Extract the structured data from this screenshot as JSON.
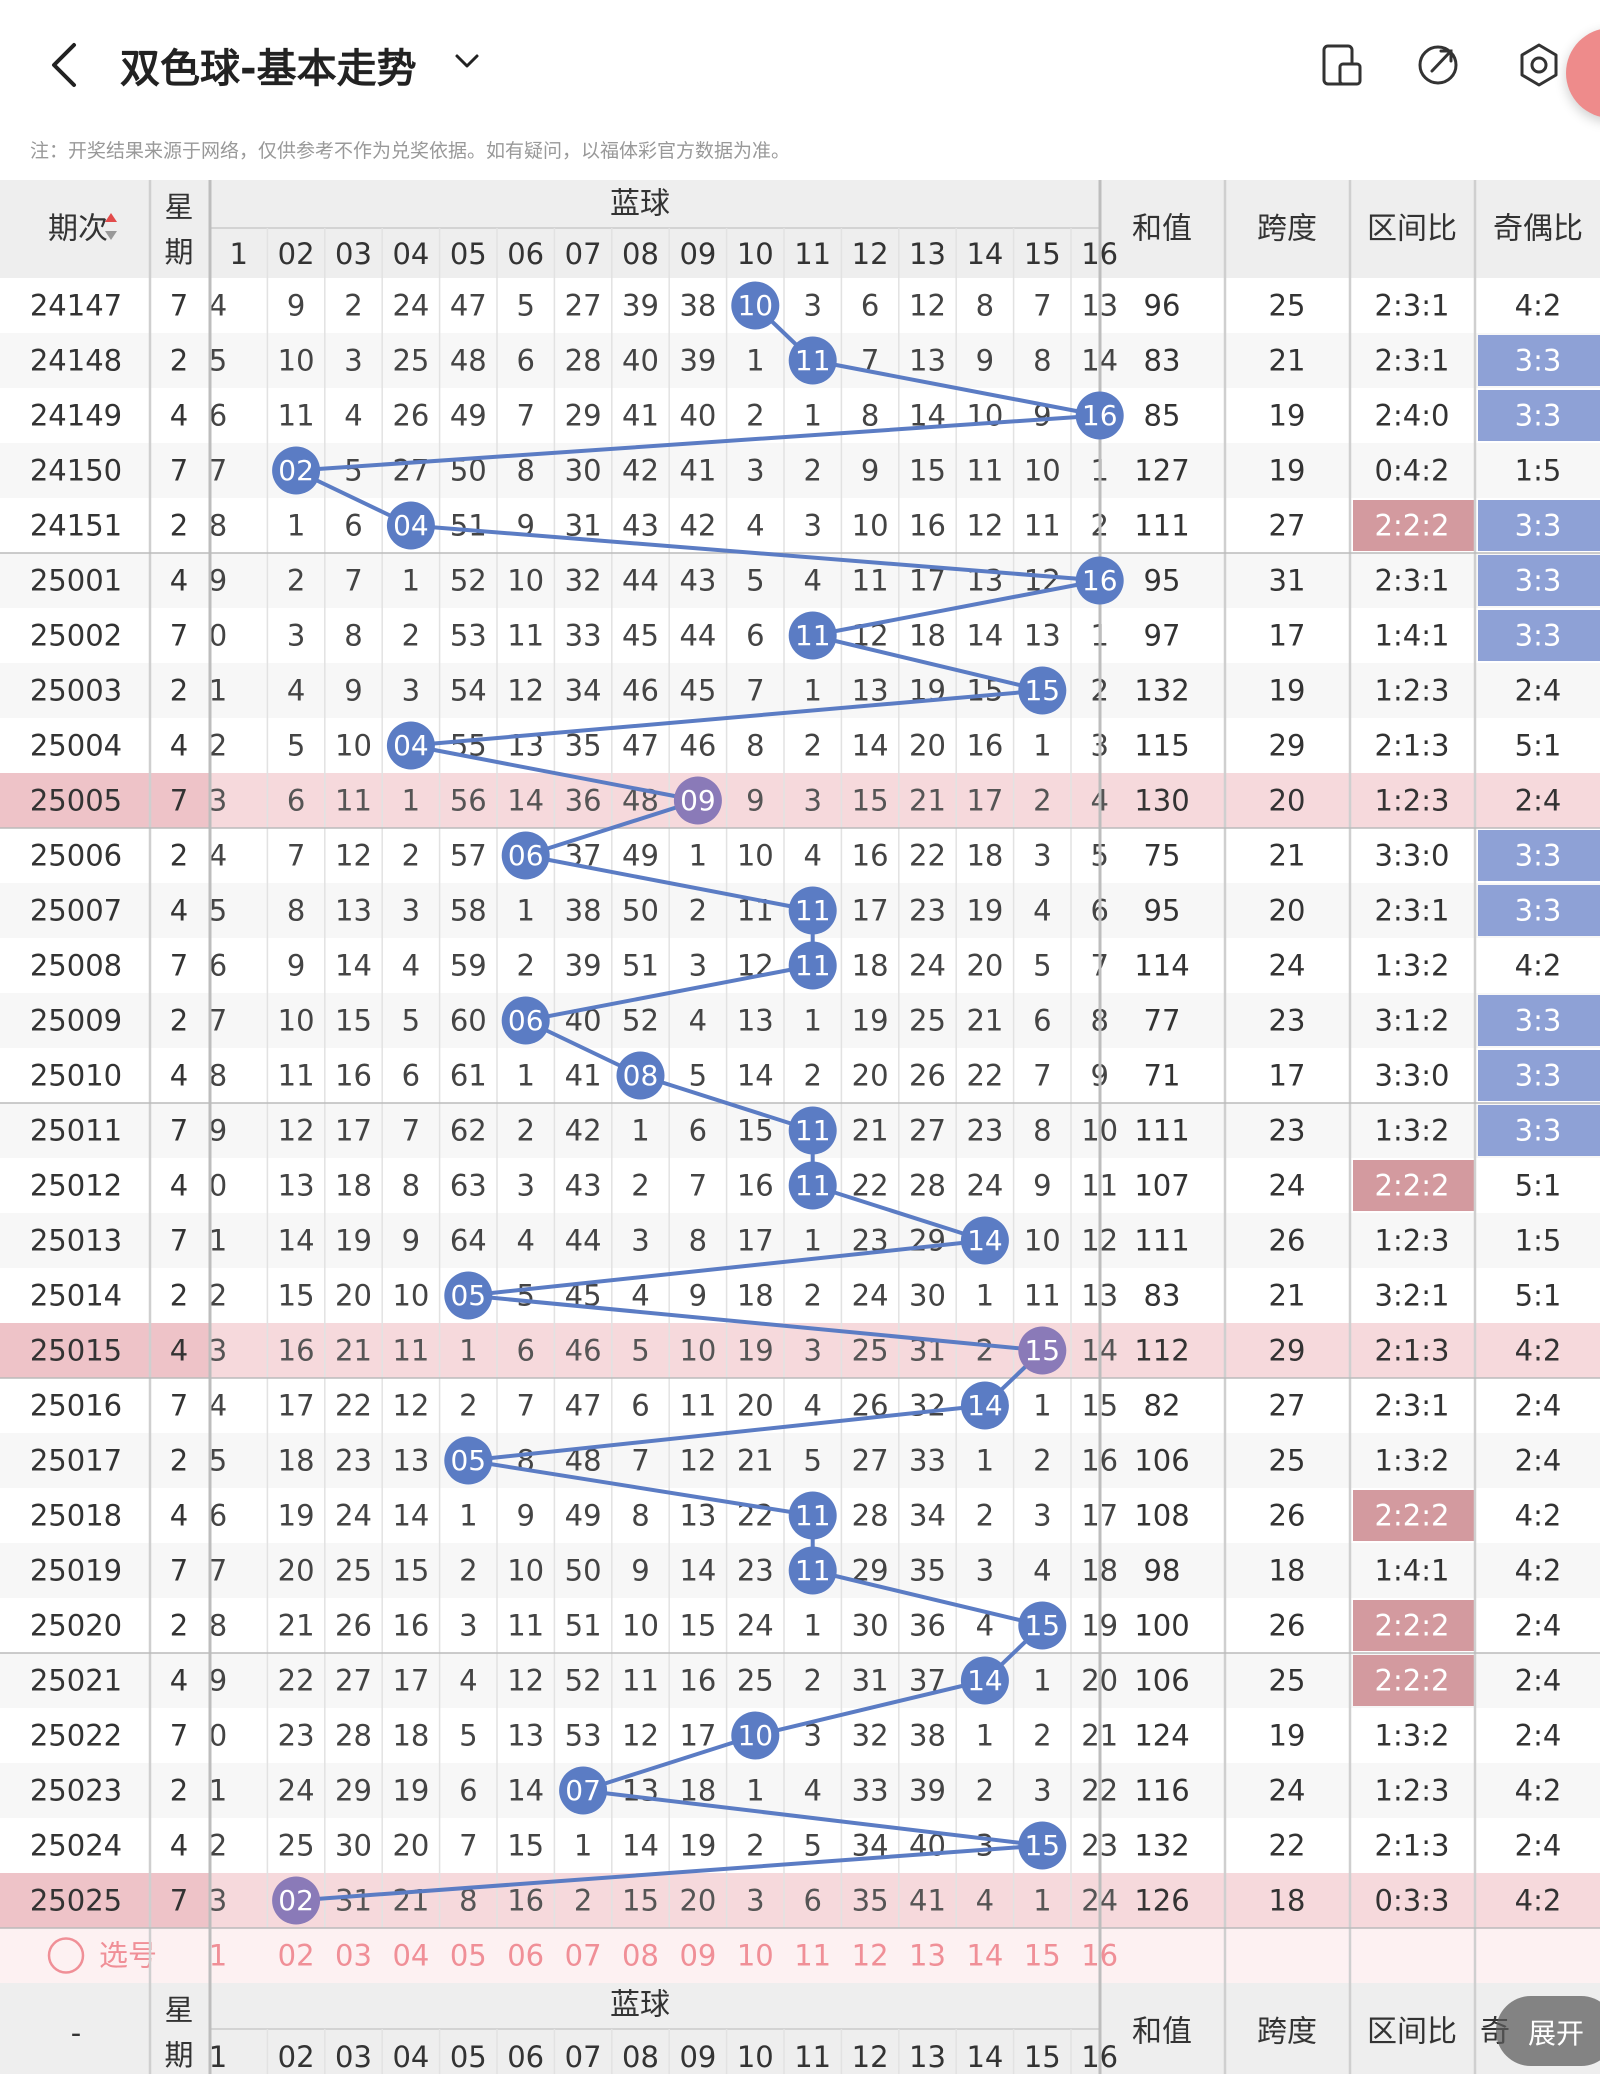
{
  "header": {
    "title": "双色球-基本走势",
    "icons": [
      "back-arrow-icon",
      "dropdown-chevron-icon",
      "device-icon",
      "share-icon",
      "settings-icon"
    ]
  },
  "notice": "注：开奖结果来源于网络，仅供参考不作为兑奖依据。如有疑问，以福体彩官方数据为准。",
  "table": {
    "col_issue": "期次",
    "col_week": "星期",
    "col_blue": "蓝球",
    "col_sum": "和值",
    "col_span": "跨度",
    "col_zone": "区间比",
    "col_odd": "奇偶比",
    "blue_numbers": [
      "1",
      "02",
      "03",
      "04",
      "05",
      "06",
      "07",
      "08",
      "09",
      "10",
      "11",
      "12",
      "13",
      "14",
      "15",
      "16"
    ],
    "rows": [
      {
        "issue": "24147",
        "week": "7",
        "blue": 10,
        "cells": [
          "4",
          "9",
          "2",
          "24",
          "47",
          "5",
          "27",
          "39",
          "38",
          "10",
          "3",
          "6",
          "12",
          "8",
          "7",
          "13"
        ],
        "sum": "96",
        "span": "25",
        "zone": "2:3:1",
        "odd": "4:2",
        "zone_hl": false,
        "odd_hl": false,
        "row_hl": false
      },
      {
        "issue": "24148",
        "week": "2",
        "blue": 11,
        "cells": [
          "5",
          "10",
          "3",
          "25",
          "48",
          "6",
          "28",
          "40",
          "39",
          "1",
          "11",
          "7",
          "13",
          "9",
          "8",
          "14"
        ],
        "sum": "83",
        "span": "21",
        "zone": "2:3:1",
        "odd": "3:3",
        "zone_hl": false,
        "odd_hl": true,
        "row_hl": false
      },
      {
        "issue": "24149",
        "week": "4",
        "blue": 16,
        "cells": [
          "6",
          "11",
          "4",
          "26",
          "49",
          "7",
          "29",
          "41",
          "40",
          "2",
          "1",
          "8",
          "14",
          "10",
          "9",
          "16"
        ],
        "sum": "85",
        "span": "19",
        "zone": "2:4:0",
        "odd": "3:3",
        "zone_hl": false,
        "odd_hl": true,
        "row_hl": false
      },
      {
        "issue": "24150",
        "week": "7",
        "blue": 2,
        "cells": [
          "7",
          "02",
          "5",
          "27",
          "50",
          "8",
          "30",
          "42",
          "41",
          "3",
          "2",
          "9",
          "15",
          "11",
          "10",
          "1"
        ],
        "sum": "127",
        "span": "19",
        "zone": "0:4:2",
        "odd": "1:5",
        "zone_hl": false,
        "odd_hl": false,
        "row_hl": false
      },
      {
        "issue": "24151",
        "week": "2",
        "blue": 4,
        "cells": [
          "8",
          "1",
          "6",
          "04",
          "51",
          "9",
          "31",
          "43",
          "42",
          "4",
          "3",
          "10",
          "16",
          "12",
          "11",
          "2"
        ],
        "sum": "111",
        "span": "27",
        "zone": "2:2:2",
        "odd": "3:3",
        "zone_hl": true,
        "odd_hl": true,
        "row_hl": false
      },
      {
        "issue": "25001",
        "week": "4",
        "blue": 16,
        "cells": [
          "9",
          "2",
          "7",
          "1",
          "52",
          "10",
          "32",
          "44",
          "43",
          "5",
          "4",
          "11",
          "17",
          "13",
          "12",
          "16"
        ],
        "sum": "95",
        "span": "31",
        "zone": "2:3:1",
        "odd": "3:3",
        "zone_hl": false,
        "odd_hl": true,
        "row_hl": false
      },
      {
        "issue": "25002",
        "week": "7",
        "blue": 11,
        "cells": [
          "0",
          "3",
          "8",
          "2",
          "53",
          "11",
          "33",
          "45",
          "44",
          "6",
          "11",
          "12",
          "18",
          "14",
          "13",
          "1"
        ],
        "sum": "97",
        "span": "17",
        "zone": "1:4:1",
        "odd": "3:3",
        "zone_hl": false,
        "odd_hl": true,
        "row_hl": false
      },
      {
        "issue": "25003",
        "week": "2",
        "blue": 15,
        "cells": [
          "1",
          "4",
          "9",
          "3",
          "54",
          "12",
          "34",
          "46",
          "45",
          "7",
          "1",
          "13",
          "19",
          "15",
          "15",
          "2"
        ],
        "sum": "132",
        "span": "19",
        "zone": "1:2:3",
        "odd": "2:4",
        "zone_hl": false,
        "odd_hl": false,
        "row_hl": false
      },
      {
        "issue": "25004",
        "week": "4",
        "blue": 4,
        "cells": [
          "2",
          "5",
          "10",
          "04",
          "55",
          "13",
          "35",
          "47",
          "46",
          "8",
          "2",
          "14",
          "20",
          "16",
          "1",
          "3"
        ],
        "sum": "115",
        "span": "29",
        "zone": "2:1:3",
        "odd": "5:1",
        "zone_hl": false,
        "odd_hl": false,
        "row_hl": false
      },
      {
        "issue": "25005",
        "week": "7",
        "blue": 9,
        "cells": [
          "3",
          "6",
          "11",
          "1",
          "56",
          "14",
          "36",
          "48",
          "09",
          "9",
          "3",
          "15",
          "21",
          "17",
          "2",
          "4"
        ],
        "sum": "130",
        "span": "20",
        "zone": "1:2:3",
        "odd": "2:4",
        "zone_hl": false,
        "odd_hl": false,
        "row_hl": true
      },
      {
        "issue": "25006",
        "week": "2",
        "blue": 6,
        "cells": [
          "4",
          "7",
          "12",
          "2",
          "57",
          "06",
          "37",
          "49",
          "1",
          "10",
          "4",
          "16",
          "22",
          "18",
          "3",
          "5"
        ],
        "sum": "75",
        "span": "21",
        "zone": "3:3:0",
        "odd": "3:3",
        "zone_hl": false,
        "odd_hl": true,
        "row_hl": false
      },
      {
        "issue": "25007",
        "week": "4",
        "blue": 11,
        "cells": [
          "5",
          "8",
          "13",
          "3",
          "58",
          "1",
          "38",
          "50",
          "2",
          "11",
          "11",
          "17",
          "23",
          "19",
          "4",
          "6"
        ],
        "sum": "95",
        "span": "20",
        "zone": "2:3:1",
        "odd": "3:3",
        "zone_hl": false,
        "odd_hl": true,
        "row_hl": false
      },
      {
        "issue": "25008",
        "week": "7",
        "blue": 11,
        "cells": [
          "6",
          "9",
          "14",
          "4",
          "59",
          "2",
          "39",
          "51",
          "3",
          "12",
          "11",
          "18",
          "24",
          "20",
          "5",
          "7"
        ],
        "sum": "114",
        "span": "24",
        "zone": "1:3:2",
        "odd": "4:2",
        "zone_hl": false,
        "odd_hl": false,
        "row_hl": false
      },
      {
        "issue": "25009",
        "week": "2",
        "blue": 6,
        "cells": [
          "7",
          "10",
          "15",
          "5",
          "60",
          "06",
          "40",
          "52",
          "4",
          "13",
          "1",
          "19",
          "25",
          "21",
          "6",
          "8"
        ],
        "sum": "77",
        "span": "23",
        "zone": "3:1:2",
        "odd": "3:3",
        "zone_hl": false,
        "odd_hl": true,
        "row_hl": false
      },
      {
        "issue": "25010",
        "week": "4",
        "blue": 8,
        "cells": [
          "8",
          "11",
          "16",
          "6",
          "61",
          "1",
          "41",
          "08",
          "5",
          "14",
          "2",
          "20",
          "26",
          "22",
          "7",
          "9"
        ],
        "sum": "71",
        "span": "17",
        "zone": "3:3:0",
        "odd": "3:3",
        "zone_hl": false,
        "odd_hl": true,
        "row_hl": false
      },
      {
        "issue": "25011",
        "week": "7",
        "blue": 11,
        "cells": [
          "9",
          "12",
          "17",
          "7",
          "62",
          "2",
          "42",
          "1",
          "6",
          "15",
          "11",
          "21",
          "27",
          "23",
          "8",
          "10"
        ],
        "sum": "111",
        "span": "23",
        "zone": "1:3:2",
        "odd": "3:3",
        "zone_hl": false,
        "odd_hl": true,
        "row_hl": false
      },
      {
        "issue": "25012",
        "week": "4",
        "blue": 11,
        "cells": [
          "0",
          "13",
          "18",
          "8",
          "63",
          "3",
          "43",
          "2",
          "7",
          "16",
          "11",
          "22",
          "28",
          "24",
          "9",
          "11"
        ],
        "sum": "107",
        "span": "24",
        "zone": "2:2:2",
        "odd": "5:1",
        "zone_hl": true,
        "odd_hl": false,
        "row_hl": false
      },
      {
        "issue": "25013",
        "week": "7",
        "blue": 14,
        "cells": [
          "1",
          "14",
          "19",
          "9",
          "64",
          "4",
          "44",
          "3",
          "8",
          "17",
          "1",
          "23",
          "29",
          "14",
          "10",
          "12"
        ],
        "sum": "111",
        "span": "26",
        "zone": "1:2:3",
        "odd": "1:5",
        "zone_hl": false,
        "odd_hl": false,
        "row_hl": false
      },
      {
        "issue": "25014",
        "week": "2",
        "blue": 5,
        "cells": [
          "2",
          "15",
          "20",
          "10",
          "05",
          "5",
          "45",
          "4",
          "9",
          "18",
          "2",
          "24",
          "30",
          "1",
          "11",
          "13"
        ],
        "sum": "83",
        "span": "21",
        "zone": "3:2:1",
        "odd": "5:1",
        "zone_hl": false,
        "odd_hl": false,
        "row_hl": false
      },
      {
        "issue": "25015",
        "week": "4",
        "blue": 15,
        "cells": [
          "3",
          "16",
          "21",
          "11",
          "1",
          "6",
          "46",
          "5",
          "10",
          "19",
          "3",
          "25",
          "31",
          "2",
          "15",
          "14"
        ],
        "sum": "112",
        "span": "29",
        "zone": "2:1:3",
        "odd": "4:2",
        "zone_hl": false,
        "odd_hl": false,
        "row_hl": true
      },
      {
        "issue": "25016",
        "week": "7",
        "blue": 14,
        "cells": [
          "4",
          "17",
          "22",
          "12",
          "2",
          "7",
          "47",
          "6",
          "11",
          "20",
          "4",
          "26",
          "32",
          "14",
          "1",
          "15"
        ],
        "sum": "82",
        "span": "27",
        "zone": "2:3:1",
        "odd": "2:4",
        "zone_hl": false,
        "odd_hl": false,
        "row_hl": false
      },
      {
        "issue": "25017",
        "week": "2",
        "blue": 5,
        "cells": [
          "5",
          "18",
          "23",
          "13",
          "05",
          "8",
          "48",
          "7",
          "12",
          "21",
          "5",
          "27",
          "33",
          "1",
          "2",
          "16"
        ],
        "sum": "106",
        "span": "25",
        "zone": "1:3:2",
        "odd": "2:4",
        "zone_hl": false,
        "odd_hl": false,
        "row_hl": false
      },
      {
        "issue": "25018",
        "week": "4",
        "blue": 11,
        "cells": [
          "6",
          "19",
          "24",
          "14",
          "1",
          "9",
          "49",
          "8",
          "13",
          "22",
          "11",
          "28",
          "34",
          "2",
          "3",
          "17"
        ],
        "sum": "108",
        "span": "26",
        "zone": "2:2:2",
        "odd": "4:2",
        "zone_hl": true,
        "odd_hl": false,
        "row_hl": false
      },
      {
        "issue": "25019",
        "week": "7",
        "blue": 11,
        "cells": [
          "7",
          "20",
          "25",
          "15",
          "2",
          "10",
          "50",
          "9",
          "14",
          "23",
          "11",
          "29",
          "35",
          "3",
          "4",
          "18"
        ],
        "sum": "98",
        "span": "18",
        "zone": "1:4:1",
        "odd": "4:2",
        "zone_hl": false,
        "odd_hl": false,
        "row_hl": false
      },
      {
        "issue": "25020",
        "week": "2",
        "blue": 15,
        "cells": [
          "8",
          "21",
          "26",
          "16",
          "3",
          "11",
          "51",
          "10",
          "15",
          "24",
          "1",
          "30",
          "36",
          "4",
          "15",
          "19"
        ],
        "sum": "100",
        "span": "26",
        "zone": "2:2:2",
        "odd": "2:4",
        "zone_hl": true,
        "odd_hl": false,
        "row_hl": false
      },
      {
        "issue": "25021",
        "week": "4",
        "blue": 14,
        "cells": [
          "9",
          "22",
          "27",
          "17",
          "4",
          "12",
          "52",
          "11",
          "16",
          "25",
          "2",
          "31",
          "37",
          "14",
          "1",
          "20"
        ],
        "sum": "106",
        "span": "25",
        "zone": "2:2:2",
        "odd": "2:4",
        "zone_hl": true,
        "odd_hl": false,
        "row_hl": false
      },
      {
        "issue": "25022",
        "week": "7",
        "blue": 10,
        "cells": [
          "0",
          "23",
          "28",
          "18",
          "5",
          "13",
          "53",
          "12",
          "17",
          "10",
          "3",
          "32",
          "38",
          "1",
          "2",
          "21"
        ],
        "sum": "124",
        "span": "19",
        "zone": "1:3:2",
        "odd": "2:4",
        "zone_hl": false,
        "odd_hl": false,
        "row_hl": false
      },
      {
        "issue": "25023",
        "week": "2",
        "blue": 7,
        "cells": [
          "1",
          "24",
          "29",
          "19",
          "6",
          "14",
          "07",
          "13",
          "18",
          "1",
          "4",
          "33",
          "39",
          "2",
          "3",
          "22"
        ],
        "sum": "116",
        "span": "24",
        "zone": "1:2:3",
        "odd": "4:2",
        "zone_hl": false,
        "odd_hl": false,
        "row_hl": false
      },
      {
        "issue": "25024",
        "week": "4",
        "blue": 15,
        "cells": [
          "2",
          "25",
          "30",
          "20",
          "7",
          "15",
          "1",
          "14",
          "19",
          "2",
          "5",
          "34",
          "40",
          "3",
          "15",
          "23"
        ],
        "sum": "132",
        "span": "22",
        "zone": "2:1:3",
        "odd": "2:4",
        "zone_hl": false,
        "odd_hl": false,
        "row_hl": false
      },
      {
        "issue": "25025",
        "week": "7",
        "blue": 2,
        "cells": [
          "3",
          "02",
          "31",
          "21",
          "8",
          "16",
          "2",
          "15",
          "20",
          "3",
          "6",
          "35",
          "41",
          "4",
          "1",
          "24"
        ],
        "sum": "126",
        "span": "18",
        "zone": "0:3:3",
        "odd": "4:2",
        "zone_hl": false,
        "odd_hl": false,
        "row_hl": true
      }
    ],
    "select_label": "选号",
    "footer_issue": "-",
    "footer_odd_partial": "奇"
  },
  "expand_label": "展开",
  "colors": {
    "ball_blue": "#5b7cc4",
    "ball_purple": "#8a7ab8",
    "highlight_blue": "#8ea1d6",
    "highlight_red": "#d39a9f",
    "row_pink": "#f6d9dc",
    "select_pink": "#f08f97"
  }
}
